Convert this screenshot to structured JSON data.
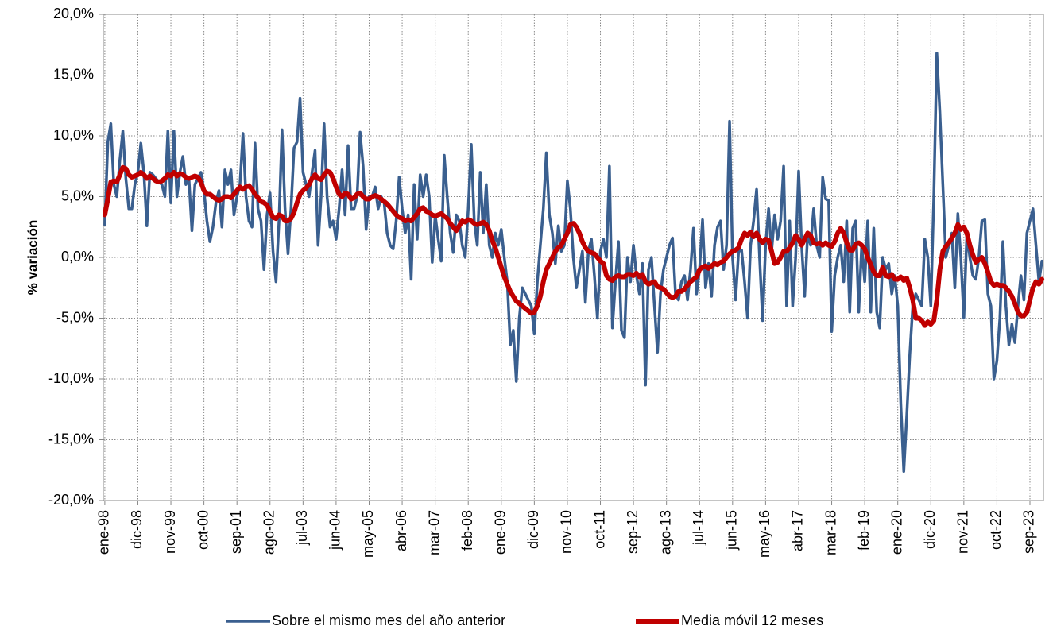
{
  "chart_data": {
    "type": "line",
    "ylabel": "% variación",
    "ylim": [
      -20,
      20
    ],
    "yticks": [
      {
        "value": -20,
        "label": "-20,0%"
      },
      {
        "value": -15,
        "label": "-15,0%"
      },
      {
        "value": -10,
        "label": "-10,0%"
      },
      {
        "value": -5,
        "label": "-5,0%"
      },
      {
        "value": 0,
        "label": "0,0%"
      },
      {
        "value": 5,
        "label": "5,0%"
      },
      {
        "value": 10,
        "label": "10,0%"
      },
      {
        "value": 15,
        "label": "15,0%"
      },
      {
        "value": 20,
        "label": "20,0%"
      }
    ],
    "grid": true,
    "legend": "bottom",
    "categories": [
      "ene-98",
      null,
      null,
      null,
      null,
      null,
      null,
      null,
      null,
      null,
      null,
      "dic-98",
      null,
      null,
      null,
      null,
      null,
      null,
      null,
      null,
      null,
      null,
      "nov-99",
      null,
      null,
      null,
      null,
      null,
      null,
      null,
      null,
      null,
      null,
      "oct-00",
      null,
      null,
      null,
      null,
      null,
      null,
      null,
      null,
      null,
      null,
      "sep-01",
      null,
      null,
      null,
      null,
      null,
      null,
      null,
      null,
      null,
      null,
      "ago-02",
      null,
      null,
      null,
      null,
      null,
      null,
      null,
      null,
      null,
      null,
      "jul-03",
      null,
      null,
      null,
      null,
      null,
      null,
      null,
      null,
      null,
      null,
      "jun-04",
      null,
      null,
      null,
      null,
      null,
      null,
      null,
      null,
      null,
      null,
      "may-05",
      null,
      null,
      null,
      null,
      null,
      null,
      null,
      null,
      null,
      null,
      "abr-06",
      null,
      null,
      null,
      null,
      null,
      null,
      null,
      null,
      null,
      null,
      "mar-07",
      null,
      null,
      null,
      null,
      null,
      null,
      null,
      null,
      null,
      null,
      "feb-08",
      null,
      null,
      null,
      null,
      null,
      null,
      null,
      null,
      null,
      null,
      "ene-09",
      null,
      null,
      null,
      null,
      null,
      null,
      null,
      null,
      null,
      null,
      "dic-09",
      null,
      null,
      null,
      null,
      null,
      null,
      null,
      null,
      null,
      null,
      "nov-10",
      null,
      null,
      null,
      null,
      null,
      null,
      null,
      null,
      null,
      null,
      "oct-11",
      null,
      null,
      null,
      null,
      null,
      null,
      null,
      null,
      null,
      null,
      "sep-12",
      null,
      null,
      null,
      null,
      null,
      null,
      null,
      null,
      null,
      null,
      "ago-13",
      null,
      null,
      null,
      null,
      null,
      null,
      null,
      null,
      null,
      null,
      "jul-14",
      null,
      null,
      null,
      null,
      null,
      null,
      null,
      null,
      null,
      null,
      "jun-15",
      null,
      null,
      null,
      null,
      null,
      null,
      null,
      null,
      null,
      null,
      "may-16",
      null,
      null,
      null,
      null,
      null,
      null,
      null,
      null,
      null,
      null,
      "abr-17",
      null,
      null,
      null,
      null,
      null,
      null,
      null,
      null,
      null,
      null,
      "mar-18",
      null,
      null,
      null,
      null,
      null,
      null,
      null,
      null,
      null,
      null,
      "feb-19",
      null,
      null,
      null,
      null,
      null,
      null,
      null,
      null,
      null,
      null,
      "ene-20",
      null,
      null,
      null,
      null,
      null,
      null,
      null,
      null,
      null,
      null,
      "dic-20",
      null,
      null,
      null,
      null,
      null,
      null,
      null,
      null,
      null,
      null,
      "nov-21",
      null,
      null,
      null,
      null,
      null,
      null,
      null,
      null,
      null,
      null,
      "oct-22",
      null,
      null,
      null,
      null,
      null,
      null,
      null,
      null,
      null,
      null,
      "sep-23",
      null,
      null,
      null,
      null
    ],
    "series": [
      {
        "name": "Sobre el mismo mes del año anterior",
        "color": "#3a5f8f",
        "width": 3.5,
        "values": [
          2.7,
          9.5,
          11,
          6,
          5,
          8,
          10.4,
          6.5,
          4,
          4,
          6,
          7,
          9.4,
          7,
          2.6,
          7,
          6.8,
          6.5,
          6.2,
          6,
          5,
          10.4,
          4.5,
          10.4,
          5,
          7,
          8.3,
          6,
          6.5,
          2.2,
          6,
          6.5,
          7,
          5.5,
          3,
          1.3,
          2.5,
          4.5,
          5.5,
          2.5,
          7.2,
          6,
          7.2,
          3.5,
          5,
          6,
          10.2,
          5,
          3,
          2.5,
          9.4,
          4,
          3,
          -1,
          3.5,
          5.3,
          0.5,
          -2,
          3,
          10.5,
          4,
          0.3,
          4,
          9,
          9.5,
          13.1,
          7,
          6,
          5,
          7,
          8.8,
          1,
          5,
          11,
          5,
          2.5,
          3,
          1.5,
          4,
          7.2,
          3.5,
          9.2,
          4,
          4,
          5,
          10.3,
          7.5,
          2.3,
          5,
          5,
          5.8,
          4,
          5,
          4.5,
          2,
          1,
          0.7,
          3,
          6.6,
          4,
          2,
          3.5,
          -1.8,
          6,
          1.5,
          6.8,
          5,
          6.8,
          5,
          -0.4,
          3.5,
          1.5,
          -0.3,
          8.4,
          5,
          2,
          0.4,
          3.5,
          3,
          1,
          0,
          4,
          9.3,
          3,
          1,
          7,
          2,
          6,
          1,
          0,
          2,
          1,
          2.3,
          0,
          -2,
          -7.2,
          -6,
          -10.2,
          -5,
          -2.5,
          -3,
          -3.5,
          -4,
          -6.3,
          -2,
          1,
          4,
          8.6,
          3.5,
          2,
          -0.5,
          2.6,
          0.5,
          1,
          6.3,
          4,
          0,
          -2.5,
          -1,
          0.5,
          -3.7,
          0.5,
          1.5,
          -1.5,
          -5,
          0.5,
          1.5,
          0,
          7.5,
          -5.8,
          -2,
          1.3,
          -6,
          -6.6,
          0,
          -2,
          1,
          -1.5,
          -3,
          -0.5,
          -10.5,
          -1,
          0,
          -4,
          -7.8,
          -3,
          -1,
          0,
          1,
          1.6,
          -3,
          -3.5,
          -2,
          -1.5,
          -3.5,
          -1,
          2.4,
          -3,
          -1,
          3.1,
          -2.5,
          -0.5,
          -3.2,
          1,
          2.5,
          3,
          -1,
          1,
          11.2,
          0,
          -3.5,
          0.5,
          0.6,
          -2,
          -5,
          1,
          3,
          5.6,
          0,
          -5.2,
          1,
          4,
          0.5,
          3.5,
          1.5,
          3,
          7.5,
          -4,
          3,
          -4,
          0,
          7.1,
          1,
          -3.2,
          2,
          1,
          4,
          1,
          0,
          6.6,
          4.8,
          4.7,
          -6.1,
          -1.5,
          0,
          1,
          -2,
          3,
          -4.5,
          2.4,
          3,
          -4.5,
          1,
          -2,
          3,
          -4.5,
          2.4,
          -4.5,
          -5.8,
          0,
          -1,
          -0.5,
          -3,
          -1.5,
          -4,
          -12,
          -17.6,
          -13,
          -8,
          -4,
          -3,
          -3.5,
          -4,
          1.5,
          0,
          -4,
          5,
          16.8,
          12,
          6,
          0,
          1,
          2,
          -2.5,
          3.6,
          0,
          -5,
          2,
          0,
          -1.5,
          -1.8,
          0,
          3,
          3.1,
          -3,
          -4,
          -10,
          -8.5,
          -5,
          1.3,
          -4,
          -7.2,
          -5.5,
          -7,
          -4,
          -1.5,
          -3.5,
          2,
          3,
          4,
          1,
          -2,
          -0.3
        ]
      },
      {
        "name": "Media móvil 12 meses",
        "color": "#c00000",
        "width": 6,
        "values": [
          3.5,
          4.8,
          6.2,
          6.3,
          6.2,
          6.8,
          7.4,
          7.3,
          6.8,
          6.6,
          6.7,
          6.8,
          7.0,
          6.8,
          6.5,
          6.7,
          6.5,
          6.3,
          6.2,
          6.3,
          6.5,
          6.8,
          6.7,
          7.0,
          6.7,
          6.9,
          6.8,
          6.6,
          6.5,
          6.6,
          6.7,
          6.6,
          6.2,
          5.5,
          5.2,
          5.2,
          5.0,
          4.8,
          4.7,
          4.8,
          5.0,
          5.0,
          4.9,
          5.2,
          5.5,
          5.8,
          5.6,
          5.8,
          5.9,
          5.6,
          5.2,
          4.9,
          4.6,
          4.5,
          4.3,
          3.8,
          3.3,
          3.2,
          3.5,
          3.4,
          3.0,
          3.0,
          3.2,
          3.7,
          4.5,
          5.2,
          5.5,
          5.7,
          6.0,
          6.5,
          6.8,
          6.5,
          6.4,
          6.8,
          7.1,
          7.0,
          6.5,
          5.8,
          5.2,
          5.0,
          5.3,
          5.2,
          4.8,
          4.9,
          5.2,
          5.3,
          5.0,
          4.8,
          4.8,
          5.0,
          5.1,
          5.0,
          4.8,
          4.6,
          4.4,
          4.1,
          3.8,
          3.5,
          3.3,
          3.2,
          3.0,
          3.1,
          3.0,
          3.3,
          3.6,
          4.0,
          4.1,
          3.8,
          3.7,
          3.5,
          3.4,
          3.5,
          3.6,
          3.4,
          3.2,
          2.8,
          2.5,
          2.2,
          2.6,
          3.0,
          2.9,
          3.1,
          3.0,
          2.8,
          2.7,
          2.8,
          2.9,
          2.7,
          2.2,
          1.4,
          0.8,
          0.0,
          -0.8,
          -1.6,
          -2.2,
          -2.8,
          -3.2,
          -3.6,
          -3.8,
          -4.0,
          -4.2,
          -4.4,
          -4.6,
          -4.5,
          -4.0,
          -3.2,
          -2.0,
          -1.0,
          -0.5,
          0.0,
          0.5,
          0.8,
          1.0,
          1.5,
          2.0,
          2.7,
          2.8,
          2.5,
          2.0,
          1.3,
          0.8,
          0.5,
          0.4,
          0.3,
          0.0,
          -0.3,
          -0.5,
          -1.5,
          -1.8,
          -1.9,
          -1.6,
          -1.5,
          -1.6,
          -1.6,
          -1.4,
          -1.4,
          -1.5,
          -1.3,
          -1.6,
          -1.4,
          -2.0,
          -2.2,
          -2.1,
          -2.0,
          -2.4,
          -2.5,
          -2.6,
          -2.9,
          -3.2,
          -3.3,
          -3.2,
          -2.8,
          -2.8,
          -2.6,
          -2.3,
          -2.0,
          -1.8,
          -1.6,
          -1.0,
          -0.8,
          -0.7,
          -0.9,
          -0.7,
          -0.5,
          -0.6,
          -0.4,
          -0.3,
          0.0,
          0.3,
          0.5,
          0.6,
          0.8,
          1.5,
          2.0,
          1.8,
          2.1,
          1.7,
          2.0,
          1.5,
          1.2,
          1.5,
          1.4,
          0.5,
          -0.5,
          -0.4,
          0.0,
          0.5,
          0.5,
          0.8,
          1.2,
          1.8,
          1.5,
          1.0,
          1.5,
          2.0,
          1.8,
          1.2,
          1.1,
          1.2,
          1.0,
          1.2,
          1.0,
          0.9,
          1.3,
          2.0,
          2.4,
          2.0,
          1.2,
          0.6,
          0.6,
          1.1,
          1.2,
          1.0,
          0.7,
          0.0,
          -0.6,
          -1.2,
          -1.5,
          -1.5,
          -0.8,
          -1.5,
          -1.6,
          -1.4,
          -1.8,
          -1.8,
          -1.6,
          -1.9,
          -1.7,
          -2.5,
          -3.5,
          -5.0,
          -5.0,
          -5.2,
          -5.6,
          -5.3,
          -5.5,
          -5.2,
          -3.5,
          -1.0,
          0.5,
          0.9,
          1.2,
          1.6,
          2.0,
          2.7,
          2.3,
          2.5,
          2.0,
          1.0,
          0.2,
          -0.4,
          -0.2,
          0.0,
          -0.5,
          -1.2,
          -2.0,
          -2.3,
          -2.2,
          -2.3,
          -2.3,
          -2.5,
          -2.8,
          -3.2,
          -3.8,
          -4.5,
          -4.8,
          -4.8,
          -4.5,
          -3.5,
          -2.5,
          -2.0,
          -2.2,
          -1.8
        ]
      }
    ]
  }
}
